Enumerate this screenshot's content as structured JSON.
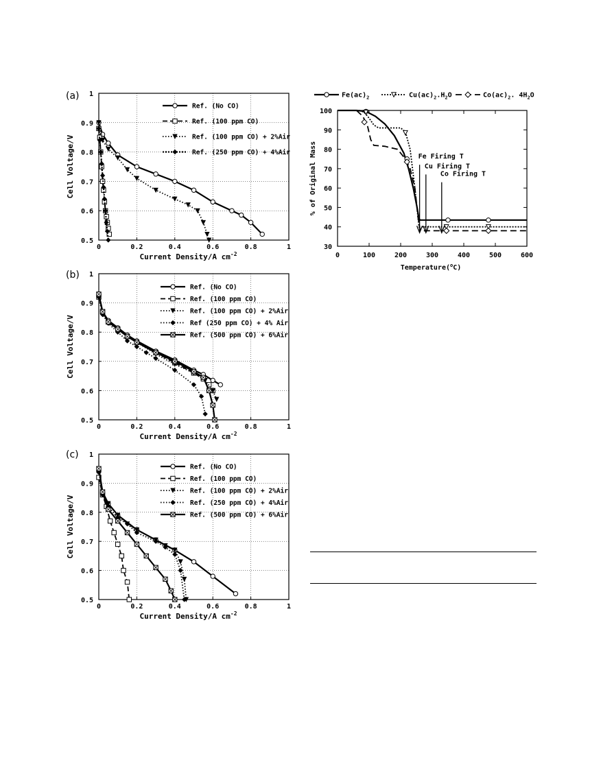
{
  "chart_data": [
    {
      "type": "line",
      "panel_label": "(a)",
      "xlabel": "Current Density/A cm",
      "xlabel_sup": "-2",
      "ylabel": "Cell Voltage/V",
      "xlim": [
        0,
        1
      ],
      "ylim": [
        0.5,
        1
      ],
      "xticks": [
        0,
        0.2,
        0.4,
        0.6,
        0.8,
        1
      ],
      "xtick_labels": [
        "0",
        "0.2",
        "0.4",
        "0.6",
        "0.8",
        "1"
      ],
      "yticks": [
        0.5,
        0.6,
        0.7,
        0.8,
        0.9,
        1
      ],
      "ytick_labels": [
        "0.5",
        "0.6",
        "0.7",
        "0.8",
        "0.9",
        "1"
      ],
      "grid": true,
      "legend_position": "top-right",
      "series": [
        {
          "name": "Ref. (No CO)",
          "style": "solid",
          "marker": "circle",
          "x": [
            0,
            0.02,
            0.05,
            0.1,
            0.2,
            0.3,
            0.4,
            0.5,
            0.6,
            0.7,
            0.75,
            0.8,
            0.86
          ],
          "y": [
            0.9,
            0.86,
            0.83,
            0.79,
            0.75,
            0.725,
            0.7,
            0.67,
            0.63,
            0.6,
            0.585,
            0.56,
            0.52
          ]
        },
        {
          "name": "Ref. (100 ppm CO)",
          "style": "dash",
          "marker": "square",
          "x": [
            0,
            0.005,
            0.01,
            0.015,
            0.02,
            0.025,
            0.03,
            0.035,
            0.04,
            0.045,
            0.05,
            0.055
          ],
          "y": [
            0.88,
            0.85,
            0.8,
            0.75,
            0.7,
            0.67,
            0.63,
            0.6,
            0.58,
            0.56,
            0.54,
            0.52
          ]
        },
        {
          "name": "Ref. (100 ppm CO) + 2%Air",
          "style": "dot",
          "marker": "triangle",
          "x": [
            0,
            0.02,
            0.05,
            0.1,
            0.15,
            0.2,
            0.3,
            0.4,
            0.47,
            0.52,
            0.55,
            0.57,
            0.58
          ],
          "y": [
            0.9,
            0.84,
            0.81,
            0.78,
            0.74,
            0.71,
            0.67,
            0.64,
            0.62,
            0.6,
            0.56,
            0.52,
            0.5
          ]
        },
        {
          "name": "Ref. (250 ppm CO) + 4%Air",
          "style": "dashdot",
          "marker": "diamond",
          "x": [
            0,
            0.005,
            0.01,
            0.015,
            0.02,
            0.025,
            0.03,
            0.035,
            0.04,
            0.045,
            0.05
          ],
          "y": [
            0.88,
            0.84,
            0.8,
            0.76,
            0.72,
            0.68,
            0.64,
            0.6,
            0.56,
            0.53,
            0.5
          ]
        }
      ]
    },
    {
      "type": "line",
      "panel_label": "(b)",
      "xlabel": "Current Density/A cm",
      "xlabel_sup": "-2",
      "ylabel": "Cell Voltage/V",
      "xlim": [
        0,
        1
      ],
      "ylim": [
        0.5,
        1
      ],
      "xticks": [
        0,
        0.2,
        0.4,
        0.6,
        0.8,
        1
      ],
      "xtick_labels": [
        "0",
        "0.2",
        "0.4",
        "0.6",
        "0.8",
        "1"
      ],
      "yticks": [
        0.5,
        0.6,
        0.7,
        0.8,
        0.9,
        1
      ],
      "ytick_labels": [
        "0.5",
        "0.6",
        "0.7",
        "0.8",
        "0.9",
        "1"
      ],
      "grid": true,
      "legend_position": "top-right",
      "series": [
        {
          "name": "Ref. (No CO)",
          "style": "solid",
          "marker": "circle",
          "x": [
            0,
            0.02,
            0.05,
            0.1,
            0.15,
            0.2,
            0.3,
            0.4,
            0.5,
            0.55,
            0.6,
            0.64
          ],
          "y": [
            0.93,
            0.87,
            0.84,
            0.815,
            0.79,
            0.77,
            0.735,
            0.705,
            0.67,
            0.655,
            0.635,
            0.62
          ]
        },
        {
          "name": "Ref. (100 ppm CO)",
          "style": "dash",
          "marker": "square",
          "x": [
            0,
            0.02,
            0.05,
            0.1,
            0.15,
            0.2,
            0.3,
            0.4,
            0.5,
            0.55,
            0.58,
            0.6
          ],
          "y": [
            0.92,
            0.87,
            0.835,
            0.81,
            0.785,
            0.765,
            0.73,
            0.695,
            0.66,
            0.64,
            0.62,
            0.6
          ]
        },
        {
          "name": "Ref. (100 ppm CO) + 2%Air",
          "style": "dot",
          "marker": "triangle",
          "x": [
            0,
            0.02,
            0.05,
            0.1,
            0.15,
            0.2,
            0.3,
            0.4,
            0.5,
            0.56,
            0.6,
            0.62
          ],
          "y": [
            0.92,
            0.87,
            0.835,
            0.81,
            0.785,
            0.765,
            0.725,
            0.69,
            0.66,
            0.635,
            0.6,
            0.57
          ]
        },
        {
          "name": "Ref (250 ppm CO) + 4% Air",
          "style": "dot",
          "marker": "diamond",
          "x": [
            0,
            0.02,
            0.05,
            0.1,
            0.15,
            0.2,
            0.25,
            0.3,
            0.4,
            0.5,
            0.54,
            0.56
          ],
          "y": [
            0.92,
            0.86,
            0.83,
            0.8,
            0.77,
            0.75,
            0.73,
            0.71,
            0.67,
            0.62,
            0.58,
            0.52
          ]
        },
        {
          "name": "Ref. (500 ppm CO) + 6%Air",
          "style": "solid",
          "marker": "crossed",
          "x": [
            0,
            0.02,
            0.05,
            0.1,
            0.15,
            0.2,
            0.3,
            0.4,
            0.5,
            0.55,
            0.58,
            0.6,
            0.61
          ],
          "y": [
            0.93,
            0.87,
            0.835,
            0.81,
            0.785,
            0.765,
            0.73,
            0.7,
            0.665,
            0.645,
            0.6,
            0.55,
            0.5
          ]
        }
      ]
    },
    {
      "type": "line",
      "panel_label": "(c)",
      "xlabel": "Current Density/A cm",
      "xlabel_sup": "-2",
      "ylabel": "Cell Voltage/V",
      "xlim": [
        0,
        1
      ],
      "ylim": [
        0.5,
        1
      ],
      "xticks": [
        0,
        0.2,
        0.4,
        0.6,
        0.8,
        1
      ],
      "xtick_labels": [
        "0",
        "0.2",
        "0.4",
        "0.6",
        "0.8",
        "1"
      ],
      "yticks": [
        0.5,
        0.6,
        0.7,
        0.8,
        0.9,
        1
      ],
      "ytick_labels": [
        "0.5",
        "0.6",
        "0.7",
        "0.8",
        "0.9",
        "1"
      ],
      "grid": true,
      "legend_position": "top-right",
      "series": [
        {
          "name": "Ref. (No CO)",
          "style": "solid",
          "marker": "circle",
          "x": [
            0,
            0.02,
            0.05,
            0.1,
            0.2,
            0.3,
            0.4,
            0.5,
            0.6,
            0.72
          ],
          "y": [
            0.94,
            0.87,
            0.83,
            0.79,
            0.74,
            0.705,
            0.67,
            0.63,
            0.58,
            0.52
          ]
        },
        {
          "name": "Ref. (100 ppm CO)",
          "style": "dash",
          "marker": "square",
          "x": [
            0,
            0.02,
            0.04,
            0.06,
            0.08,
            0.1,
            0.12,
            0.13,
            0.15,
            0.16
          ],
          "y": [
            0.92,
            0.86,
            0.82,
            0.77,
            0.73,
            0.69,
            0.65,
            0.6,
            0.56,
            0.5
          ]
        },
        {
          "name": "Ref. (100 ppm CO) + 2%Air",
          "style": "dot",
          "marker": "triangle",
          "x": [
            0,
            0.02,
            0.05,
            0.1,
            0.15,
            0.2,
            0.3,
            0.35,
            0.4,
            0.43,
            0.45,
            0.46
          ],
          "y": [
            0.95,
            0.87,
            0.83,
            0.79,
            0.76,
            0.74,
            0.705,
            0.685,
            0.67,
            0.63,
            0.57,
            0.5
          ]
        },
        {
          "name": "Ref. (250 ppm CO) + 4%Air",
          "style": "dot",
          "marker": "diamond",
          "x": [
            0,
            0.02,
            0.05,
            0.1,
            0.15,
            0.2,
            0.3,
            0.35,
            0.4,
            0.43,
            0.45
          ],
          "y": [
            0.94,
            0.86,
            0.82,
            0.78,
            0.76,
            0.73,
            0.7,
            0.68,
            0.655,
            0.6,
            0.5
          ]
        },
        {
          "name": "Ref. (500 ppm CO) + 6%Air",
          "style": "solid",
          "marker": "crossed",
          "x": [
            0,
            0.02,
            0.05,
            0.1,
            0.15,
            0.2,
            0.25,
            0.3,
            0.35,
            0.38,
            0.4
          ],
          "y": [
            0.95,
            0.87,
            0.81,
            0.77,
            0.73,
            0.69,
            0.65,
            0.61,
            0.57,
            0.53,
            0.5
          ]
        }
      ]
    },
    {
      "type": "line",
      "xlabel": "Temperature(",
      "xlabel_unit": "C)",
      "ylabel": "% of Original Mass",
      "xlim": [
        0,
        600
      ],
      "ylim": [
        30,
        100
      ],
      "xticks": [
        0,
        100,
        200,
        300,
        400,
        500,
        600
      ],
      "xtick_labels": [
        "0",
        "100",
        "200",
        "300",
        "400",
        "500",
        "600"
      ],
      "yticks": [
        30,
        40,
        50,
        60,
        70,
        80,
        90,
        100
      ],
      "ytick_labels": [
        "30",
        "40",
        "50",
        "60",
        "70",
        "80",
        "90",
        "100"
      ],
      "grid": false,
      "legend_position": "top",
      "legend_labels": [
        {
          "base": "Fe(ac)",
          "sub": "2",
          "rest": ""
        },
        {
          "base": "Cu(ac)",
          "sub": "2",
          "rest": ".H",
          "sub2": "2",
          "rest2": "O"
        },
        {
          "base": "Co(ac)",
          "sub": "2",
          "rest": ". 4H",
          "sub2": "2",
          "rest2": "O"
        }
      ],
      "series": [
        {
          "name": "Fe(ac)2",
          "style": "solid",
          "marker": "circle",
          "x": [
            0,
            60,
            90,
            120,
            150,
            180,
            210,
            225,
            240,
            252,
            258,
            262,
            300,
            350,
            400,
            480,
            600
          ],
          "y": [
            100,
            100,
            99.5,
            97,
            93,
            87,
            78,
            70,
            60,
            50,
            44,
            43.5,
            43.5,
            43.5,
            43.5,
            43.5,
            43.5
          ],
          "markers_x": [
            90,
            220,
            350,
            478
          ],
          "markers_y": [
            99.5,
            75,
            43.5,
            43.5
          ]
        },
        {
          "name": "Cu(ac)2.H2O",
          "style": "dot",
          "marker": "triangle",
          "x": [
            0,
            70,
            85,
            100,
            115,
            130,
            200,
            215,
            230,
            245,
            258,
            263,
            300,
            350,
            400,
            480,
            600
          ],
          "y": [
            100,
            100,
            99,
            96,
            92.5,
            91,
            91,
            89,
            80,
            60,
            40,
            40,
            40,
            40,
            40,
            40,
            40
          ],
          "markers_x": [
            90,
            215,
            345,
            478
          ],
          "markers_y": [
            99,
            88.5,
            40,
            40
          ]
        },
        {
          "name": "Co(ac)2.4H2O",
          "style": "dash",
          "marker": "diamond",
          "x": [
            0,
            60,
            80,
            95,
            105,
            115,
            150,
            190,
            215,
            230,
            245,
            255,
            262,
            300,
            350,
            400,
            480,
            600
          ],
          "y": [
            100,
            100,
            97,
            92,
            85,
            82,
            81.5,
            80,
            75,
            70,
            60,
            45,
            38,
            38,
            38,
            38,
            38,
            38
          ],
          "markers_x": [
            85,
            220,
            345,
            478
          ],
          "markers_y": [
            94,
            73.5,
            38,
            38
          ]
        }
      ],
      "annotations": [
        {
          "text": "Fe Firing T",
          "x": 260,
          "y_top": 72,
          "y_bottom": 37
        },
        {
          "text": "Cu Firing T",
          "x": 280,
          "y_top": 67,
          "y_bottom": 37
        },
        {
          "text": "Co Firing T",
          "x": 330,
          "y_top": 63,
          "y_bottom": 37
        }
      ]
    }
  ]
}
